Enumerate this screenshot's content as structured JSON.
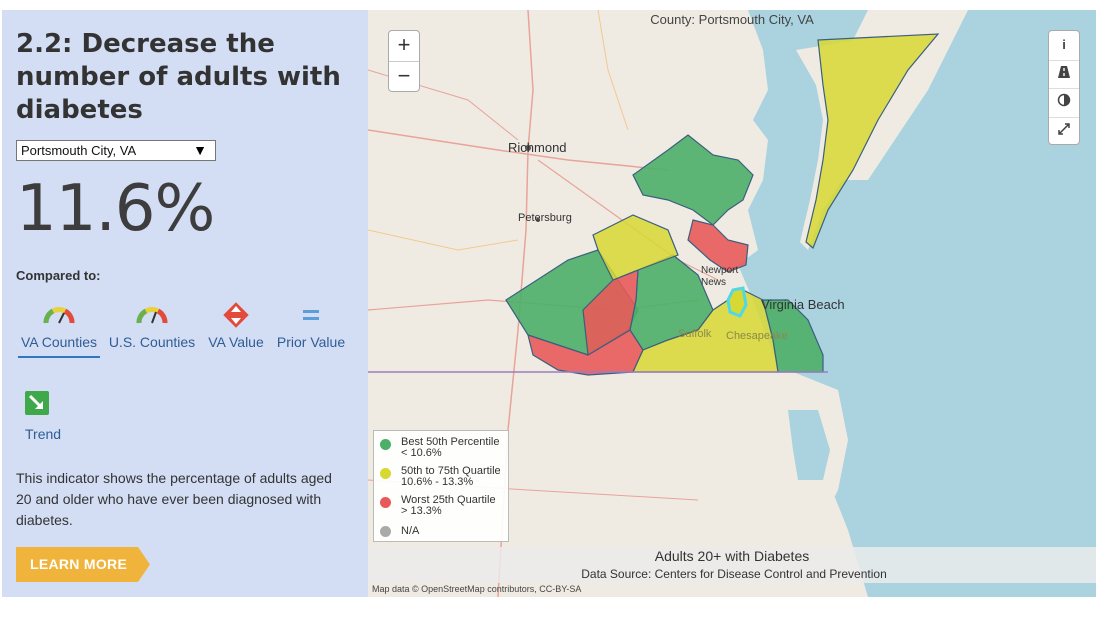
{
  "panel": {
    "title": "2.2: Decrease the number of adults with diabetes",
    "select_value": "Portsmouth City, VA",
    "big_value": "11.6%",
    "compared_label": "Compared to:",
    "comparisons": [
      {
        "label": "VA Counties",
        "icon": "gauge-icon"
      },
      {
        "label": "U.S. Counties",
        "icon": "gauge-icon"
      },
      {
        "label": "VA Value",
        "icon": "diamond-arrows-icon"
      },
      {
        "label": "Prior Value",
        "icon": "equals-icon"
      }
    ],
    "trend_label": "Trend",
    "description": "This indicator shows the percentage of adults aged 20 and older who have ever been diagnosed with diabetes.",
    "learn_more": "LEARN MORE"
  },
  "map": {
    "county_label": "County: Portsmouth City, VA",
    "zoom_in": "+",
    "zoom_out": "−",
    "place_labels": [
      "Richmond",
      "Petersburg",
      "Newport News",
      "Virginia Beach",
      "Suffolk",
      "Chesapeake"
    ],
    "legend": [
      {
        "label": "Best 50th Percentile",
        "range": "< 10.6%",
        "color": "#4caf68"
      },
      {
        "label": "50th to 75th Quartile",
        "range": "10.6% - 13.3%",
        "color": "#d8d832"
      },
      {
        "label": "Worst 25th Quartile",
        "range": "> 13.3%",
        "color": "#e85a5a"
      },
      {
        "label": "N/A",
        "range": "",
        "color": "#aaaaaa"
      }
    ],
    "layer_title": "Adults 20+ with Diabetes",
    "data_source": "Data Source: Centers for Disease Control and Prevention",
    "attribution": "Map data © OpenStreetMap contributors, CC-BY-SA"
  },
  "colors": {
    "panel_bg": "#d3def4",
    "accent": "#f0b43c",
    "link": "#2f5d95",
    "water": "#aad3df",
    "land": "#efebe3"
  }
}
